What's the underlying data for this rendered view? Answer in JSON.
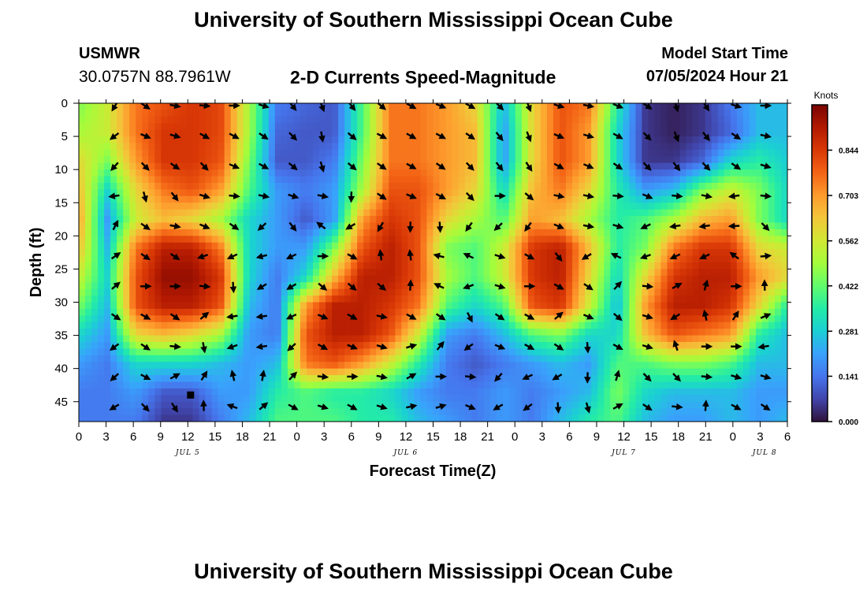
{
  "header": {
    "title": "University of Southern Mississippi Ocean Cube",
    "station": "USMWR",
    "coordinates": "30.0757N  88.7961W",
    "product": "2-D Currents Speed-Magnitude",
    "model_start_label": "Model Start Time",
    "model_start_value": "07/05/2024 Hour 21"
  },
  "footer": {
    "title": "University of Southern Mississippi Ocean Cube"
  },
  "chart_data": {
    "type": "heatmap",
    "title": "2-D Currents Speed-Magnitude",
    "xlabel": "Forecast Time(Z)",
    "ylabel": "Depth (ft)",
    "x_range_hours": [
      0,
      78
    ],
    "x_ticks": [
      {
        "h": 0,
        "label": "0"
      },
      {
        "h": 3,
        "label": "3"
      },
      {
        "h": 6,
        "label": "6"
      },
      {
        "h": 9,
        "label": "9"
      },
      {
        "h": 12,
        "label": "12"
      },
      {
        "h": 15,
        "label": "15"
      },
      {
        "h": 18,
        "label": "18"
      },
      {
        "h": 21,
        "label": "21"
      },
      {
        "h": 24,
        "label": "0"
      },
      {
        "h": 27,
        "label": "3"
      },
      {
        "h": 30,
        "label": "6"
      },
      {
        "h": 33,
        "label": "9"
      },
      {
        "h": 36,
        "label": "12"
      },
      {
        "h": 39,
        "label": "15"
      },
      {
        "h": 42,
        "label": "18"
      },
      {
        "h": 45,
        "label": "21"
      },
      {
        "h": 48,
        "label": "0"
      },
      {
        "h": 51,
        "label": "3"
      },
      {
        "h": 54,
        "label": "6"
      },
      {
        "h": 57,
        "label": "9"
      },
      {
        "h": 60,
        "label": "12"
      },
      {
        "h": 63,
        "label": "15"
      },
      {
        "h": 66,
        "label": "18"
      },
      {
        "h": 69,
        "label": "21"
      },
      {
        "h": 72,
        "label": "0"
      },
      {
        "h": 75,
        "label": "3"
      },
      {
        "h": 78,
        "label": "6"
      }
    ],
    "date_labels": [
      {
        "h": 12,
        "label": "JUL 5"
      },
      {
        "h": 36,
        "label": "JUL 6"
      },
      {
        "h": 60,
        "label": "JUL 7"
      },
      {
        "h": 75.5,
        "label": "JUL 8"
      }
    ],
    "y_range_ft": [
      0,
      48
    ],
    "y_ticks": [
      0,
      5,
      10,
      15,
      20,
      25,
      30,
      35,
      40,
      45
    ],
    "colorbar": {
      "label": "Knots",
      "range": [
        0,
        0.985
      ],
      "ticks": [
        "0.000",
        "0.141",
        "0.281",
        "0.422",
        "0.562",
        "0.703",
        "0.844"
      ],
      "colors": [
        "#30123b",
        "#4145ab",
        "#4675ed",
        "#39a2fc",
        "#1bcfd4",
        "#24eca6",
        "#61fc6c",
        "#a4fc3b",
        "#d1e834",
        "#f3c63a",
        "#fe9b2d",
        "#f36315",
        "#d93806",
        "#b11901",
        "#7a0402"
      ]
    },
    "speed_knots": [
      [
        0.45,
        0.55,
        0.75,
        0.8,
        0.85,
        0.82,
        0.5,
        0.15,
        0.12,
        0.1,
        0.4,
        0.75,
        0.75,
        0.7,
        0.6,
        0.25,
        0.6,
        0.8,
        0.75,
        0.35,
        0.05,
        0.02,
        0.05,
        0.15,
        0.25,
        0.25
      ],
      [
        0.5,
        0.55,
        0.75,
        0.85,
        0.85,
        0.82,
        0.5,
        0.12,
        0.1,
        0.1,
        0.4,
        0.75,
        0.75,
        0.7,
        0.65,
        0.2,
        0.6,
        0.8,
        0.7,
        0.3,
        0.05,
        0.02,
        0.05,
        0.12,
        0.25,
        0.25
      ],
      [
        0.6,
        0.45,
        0.7,
        0.85,
        0.85,
        0.8,
        0.45,
        0.1,
        0.1,
        0.15,
        0.45,
        0.75,
        0.75,
        0.7,
        0.65,
        0.2,
        0.6,
        0.8,
        0.7,
        0.3,
        0.05,
        0.05,
        0.12,
        0.3,
        0.35,
        0.28
      ],
      [
        0.65,
        0.3,
        0.6,
        0.75,
        0.8,
        0.7,
        0.4,
        0.2,
        0.15,
        0.2,
        0.5,
        0.8,
        0.8,
        0.7,
        0.6,
        0.3,
        0.65,
        0.75,
        0.6,
        0.35,
        0.2,
        0.25,
        0.45,
        0.55,
        0.45,
        0.3
      ],
      [
        0.7,
        0.2,
        0.55,
        0.65,
        0.6,
        0.5,
        0.3,
        0.2,
        0.1,
        0.2,
        0.7,
        0.85,
        0.8,
        0.6,
        0.5,
        0.4,
        0.7,
        0.65,
        0.5,
        0.35,
        0.4,
        0.5,
        0.65,
        0.7,
        0.45,
        0.3
      ],
      [
        0.65,
        0.25,
        0.75,
        0.9,
        0.9,
        0.75,
        0.3,
        0.2,
        0.2,
        0.45,
        0.8,
        0.9,
        0.8,
        0.45,
        0.4,
        0.55,
        0.85,
        0.9,
        0.65,
        0.35,
        0.45,
        0.75,
        0.85,
        0.85,
        0.6,
        0.55
      ],
      [
        0.55,
        0.3,
        0.8,
        0.95,
        0.95,
        0.85,
        0.3,
        0.15,
        0.3,
        0.65,
        0.9,
        0.9,
        0.8,
        0.5,
        0.4,
        0.55,
        0.85,
        0.9,
        0.6,
        0.3,
        0.6,
        0.85,
        0.9,
        0.9,
        0.7,
        0.6
      ],
      [
        0.45,
        0.25,
        0.8,
        0.9,
        0.9,
        0.8,
        0.25,
        0.15,
        0.7,
        0.9,
        0.9,
        0.85,
        0.75,
        0.4,
        0.3,
        0.4,
        0.8,
        0.85,
        0.55,
        0.25,
        0.7,
        0.9,
        0.9,
        0.85,
        0.6,
        0.35
      ],
      [
        0.3,
        0.2,
        0.6,
        0.65,
        0.6,
        0.5,
        0.2,
        0.15,
        0.8,
        0.9,
        0.9,
        0.8,
        0.55,
        0.2,
        0.15,
        0.25,
        0.4,
        0.45,
        0.3,
        0.3,
        0.65,
        0.8,
        0.75,
        0.7,
        0.35,
        0.25
      ],
      [
        0.2,
        0.15,
        0.3,
        0.3,
        0.3,
        0.25,
        0.2,
        0.25,
        0.75,
        0.8,
        0.7,
        0.55,
        0.35,
        0.15,
        0.1,
        0.15,
        0.2,
        0.25,
        0.2,
        0.4,
        0.4,
        0.45,
        0.45,
        0.4,
        0.25,
        0.25
      ],
      [
        0.15,
        0.15,
        0.2,
        0.1,
        0.1,
        0.2,
        0.2,
        0.35,
        0.4,
        0.35,
        0.35,
        0.3,
        0.2,
        0.15,
        0.15,
        0.2,
        0.15,
        0.2,
        0.25,
        0.45,
        0.3,
        0.25,
        0.25,
        0.25,
        0.2,
        0.2
      ],
      [
        0.15,
        0.15,
        0.15,
        0.05,
        0.05,
        0.15,
        0.25,
        0.4,
        0.4,
        0.4,
        0.35,
        0.35,
        0.25,
        0.2,
        0.15,
        0.2,
        0.15,
        0.25,
        0.35,
        0.4,
        0.25,
        0.2,
        0.2,
        0.25,
        0.2,
        0.25
      ]
    ],
    "arrows_rad": [
      [
        2.1,
        0.6,
        0.2,
        0.1,
        0.0,
        0.3,
        0.9,
        1.2,
        0.9,
        0.7,
        0.5,
        0.4,
        0.5,
        0.8,
        1.2,
        0.3,
        0.2,
        0.4,
        0.6,
        1.3,
        1.0,
        0.3,
        0.0,
        0.1
      ],
      [
        2.5,
        0.4,
        0.3,
        0.5,
        0.5,
        0.6,
        0.8,
        1.4,
        0.7,
        0.5,
        0.5,
        0.5,
        0.6,
        0.9,
        1.2,
        0.4,
        0.3,
        0.5,
        0.8,
        1.2,
        0.9,
        0.6,
        0.2,
        0.0
      ],
      [
        2.3,
        0.8,
        0.6,
        0.8,
        0.4,
        0.5,
        0.7,
        1.3,
        0.7,
        0.6,
        0.5,
        0.6,
        0.8,
        0.9,
        1.0,
        0.5,
        0.4,
        0.6,
        0.8,
        0.9,
        0.8,
        0.6,
        0.3,
        0.1
      ],
      [
        3.0,
        1.3,
        0.9,
        0.3,
        0.1,
        0.2,
        0.3,
        0.2,
        1.6,
        0.6,
        0.4,
        0.5,
        0.8,
        0.0,
        0.7,
        0.2,
        0.2,
        0.1,
        0.4,
        0.1,
        0.2,
        3.0,
        0.1,
        0.1
      ],
      [
        -1.1,
        0.6,
        0.2,
        0.4,
        0.6,
        2.4,
        0.9,
        -2.5,
        2.6,
        2.1,
        1.6,
        1.5,
        2.2,
        2.4,
        2.2,
        0.4,
        0.2,
        0.3,
        2.7,
        3.0,
        3.0,
        3.1,
        0.8,
        0.1
      ],
      [
        -0.6,
        0.6,
        0.6,
        2.8,
        2.7,
        2.9,
        2.7,
        0.0,
        0.5,
        -1.7,
        -1.7,
        -2.9,
        -2.7,
        0.3,
        0.5,
        0.9,
        2.6,
        -2.7,
        2.8,
        2.7,
        2.7,
        -2.5,
        -0.1,
        -1.2
      ],
      [
        -0.7,
        0.0,
        0.0,
        0.1,
        1.5,
        2.6,
        2.6,
        0.7,
        0.7,
        0.7,
        -1.5,
        -2.7,
        2.8,
        0.3,
        0.0,
        0.5,
        0.6,
        -0.8,
        0.1,
        -0.5,
        -1.3,
        0.0,
        -1.6,
        -0.4
      ],
      [
        0.6,
        0.5,
        0.6,
        -0.7,
        3.0,
        3.0,
        2.7,
        0.4,
        0.5,
        0.2,
        0.5,
        0.6,
        1.1,
        0.6,
        0.5,
        -0.7,
        0.4,
        0.7,
        0.3,
        2.6,
        -1.8,
        -1.0,
        -0.4,
        3.1
      ],
      [
        2.5,
        0.6,
        0.1,
        1.4,
        2.8,
        3.0,
        2.4,
        0.5,
        0.4,
        0.3,
        -0.3,
        -0.9,
        2.5,
        0.4,
        0.5,
        0.6,
        1.5,
        0.5,
        0.3,
        -1.9,
        0.0,
        0.0,
        3.0,
        3.0
      ],
      [
        2.4,
        0.5,
        -0.5,
        -1.0,
        -1.8,
        -1.4,
        -0.8,
        0.1,
        0.0,
        0.2,
        -0.5,
        0.0,
        0.1,
        2.3,
        2.7,
        2.6,
        1.6,
        -1.3,
        0.8,
        0.8,
        0.1,
        0.3,
        0.3,
        2.9,
        -1.2,
        2.8
      ],
      [
        2.6,
        0.8,
        1.0,
        -1.6,
        -2.8,
        -0.7,
        0.5,
        0.3,
        0.5,
        0.3,
        -0.2,
        -0.3,
        0.4,
        2.6,
        2.5,
        1.5,
        1.3,
        -0.5,
        0.6,
        0.1,
        -1.5,
        0.5,
        0.6,
        0.7,
        0.8,
        0.9
      ]
    ],
    "marker": {
      "h": 12.3,
      "depth_ft": 44
    }
  }
}
